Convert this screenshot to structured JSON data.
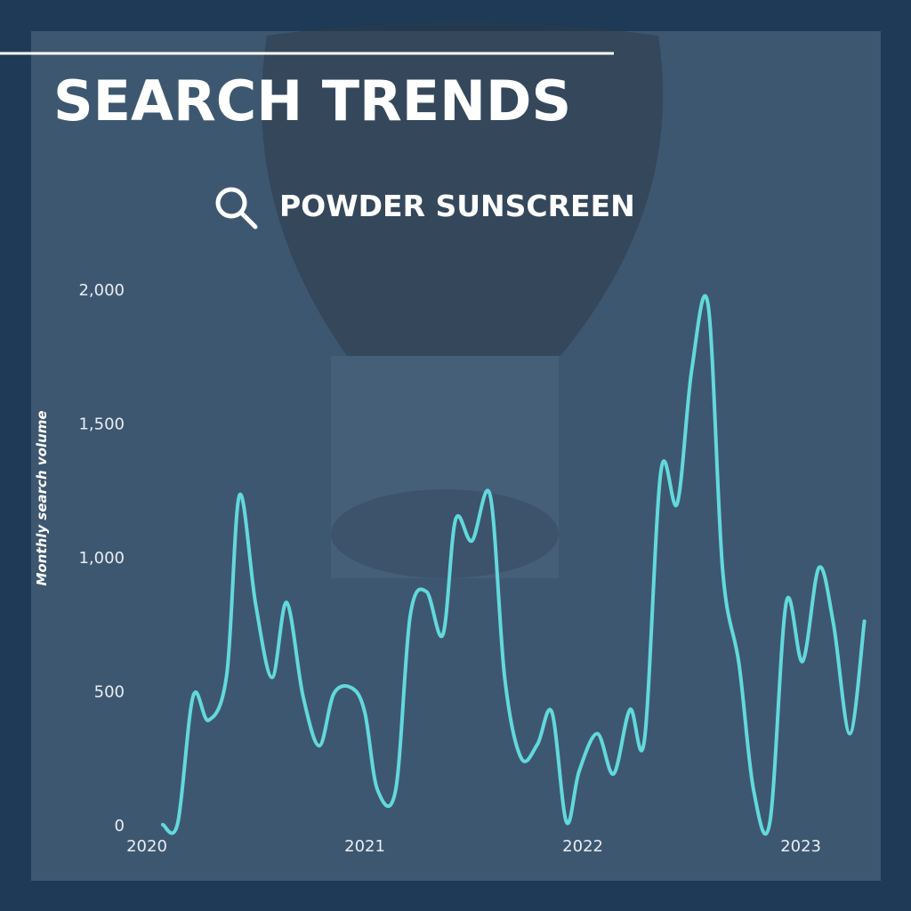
{
  "chart_data": {
    "type": "line",
    "title": "SEARCH TRENDS",
    "subtitle": "POWDER SUNSCREEN",
    "y_label": "Monthly search volume",
    "x": [
      0.88,
      1.7,
      2.55,
      3.4,
      4.4,
      5.1,
      6.0,
      6.9,
      7.7,
      8.6,
      9.5,
      10.3,
      11.3,
      12.0,
      12.7,
      13.7,
      14.5,
      15.4,
      16.3,
      17.0,
      17.9,
      18.9,
      19.7,
      20.6,
      21.5,
      22.3,
      23.1,
      23.8,
      24.8,
      25.7,
      26.6,
      27.4,
      28.3,
      29.2,
      30.0,
      30.9,
      31.7,
      32.6,
      33.4,
      34.3,
      35.2,
      36.1,
      37.0,
      37.8,
      38.7,
      39.5
    ],
    "series": [
      {
        "name": "Powder sunscreen",
        "color": "#62d9dc",
        "values": [
          0,
          5,
          480,
          390,
          560,
          1230,
          820,
          550,
          830,
          480,
          295,
          490,
          510,
          420,
          130,
          130,
          780,
          870,
          710,
          1140,
          1060,
          1230,
          550,
          250,
          300,
          420,
          10,
          200,
          340,
          190,
          430,
          320,
          1320,
          1200,
          1700,
          1940,
          950,
          600,
          130,
          10,
          830,
          610,
          960,
          750,
          340,
          760
        ]
      }
    ],
    "xlim": [
      0,
      39.5
    ],
    "xticks": [
      {
        "value": 0,
        "label": "2020"
      },
      {
        "value": 12,
        "label": "2021"
      },
      {
        "value": 24,
        "label": "2022"
      },
      {
        "value": 36,
        "label": "2023"
      }
    ],
    "ylim": [
      0,
      2000
    ],
    "yticks": [
      0,
      500,
      {
        "value": 1000,
        "label": "1,000"
      },
      {
        "value": 1500,
        "label": "1,500"
      },
      {
        "value": 2000,
        "label": "2,000"
      }
    ],
    "grid": false
  }
}
